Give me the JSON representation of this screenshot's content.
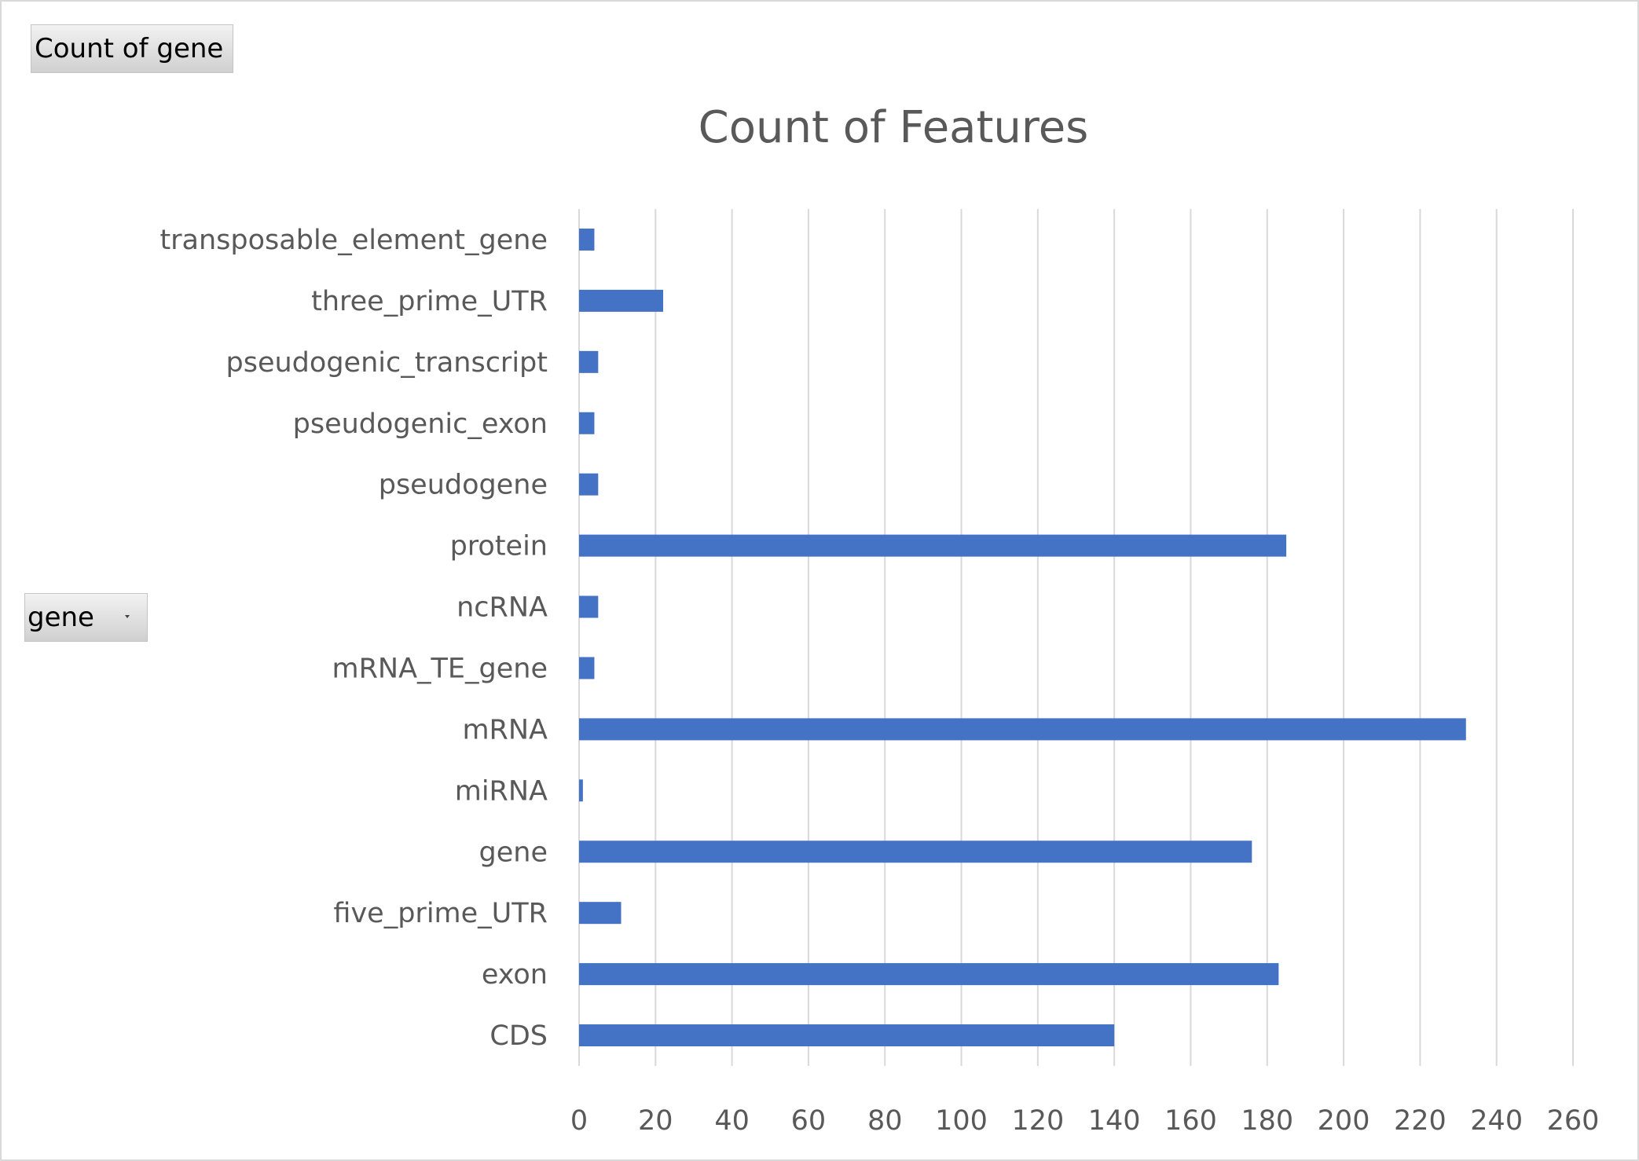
{
  "pivot_fields": {
    "value_field": "Count of gene",
    "axis_field": "gene"
  },
  "colors": {
    "bar": "#4472c4",
    "gridline": "#d9d9d9",
    "text": "#595959"
  },
  "chart_data": {
    "type": "bar",
    "orientation": "horizontal",
    "title": "Count of Features",
    "xlabel": "",
    "ylabel": "",
    "xlim": [
      0,
      260
    ],
    "x_ticks": [
      0,
      20,
      40,
      60,
      80,
      100,
      120,
      140,
      160,
      180,
      200,
      220,
      240,
      260
    ],
    "grid": true,
    "legend": "none",
    "categories": [
      "CDS",
      "exon",
      "five_prime_UTR",
      "gene",
      "miRNA",
      "mRNA",
      "mRNA_TE_gene",
      "ncRNA",
      "protein",
      "pseudogene",
      "pseudogenic_exon",
      "pseudogenic_transcript",
      "three_prime_UTR",
      "transposable_element_gene"
    ],
    "values": [
      140,
      183,
      11,
      176,
      1,
      232,
      4,
      5,
      185,
      5,
      4,
      5,
      22,
      4
    ]
  }
}
